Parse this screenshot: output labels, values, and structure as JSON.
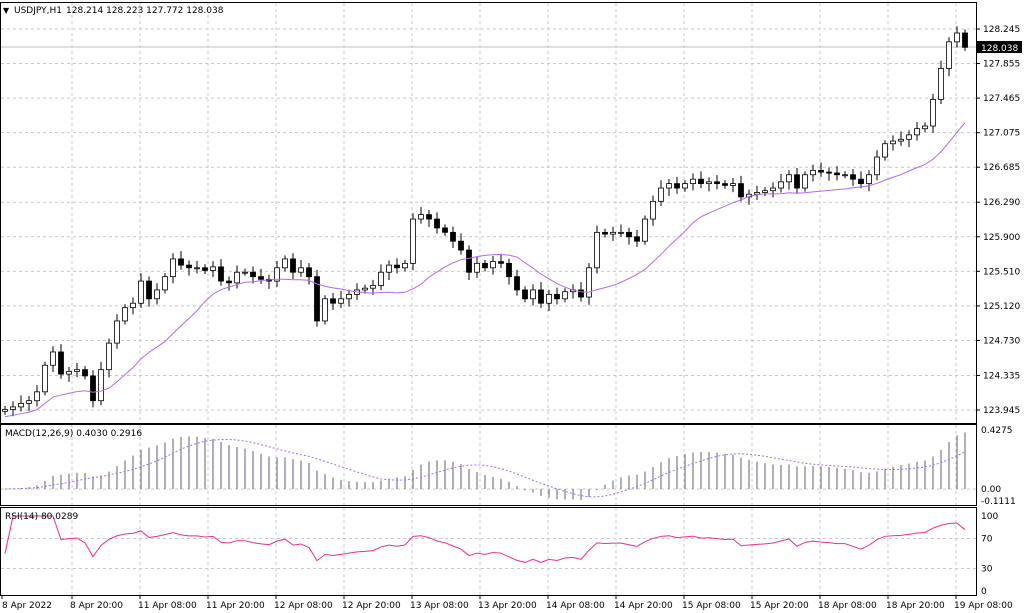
{
  "header": {
    "symbol": "USDJPY,H1",
    "ohlc": "128.214 128.223 127.772 128.038",
    "arrow_icon": "triangle-down-icon"
  },
  "macd": {
    "label": "MACD(12,26,9) 0.4030 0.2916",
    "axis": [
      "0.4275",
      "0.00",
      "-0.1111"
    ],
    "range": [
      -0.1111,
      0.4275
    ]
  },
  "rsi": {
    "label": "RSI(14) 80.0289",
    "axis": [
      "100",
      "70",
      "30",
      "0"
    ],
    "levels": [
      100,
      70,
      30,
      0
    ]
  },
  "colors": {
    "bull": "#ffffff",
    "bear": "#000000",
    "ma": "#b469f0",
    "macd_hist": "#7a7a8c",
    "macd_signal": "#a070f0",
    "rsi": "#e6348c",
    "grid": "#c8c8c8",
    "price_tag": "#000000"
  },
  "chart_data": {
    "type": "candlestick",
    "price_axis": [
      "128.245",
      "127.855",
      "127.465",
      "127.075",
      "126.685",
      "126.290",
      "125.900",
      "125.510",
      "125.120",
      "124.730",
      "124.335",
      "123.945"
    ],
    "ylim": [
      123.945,
      128.245
    ],
    "current_price": "128.038",
    "time_axis": [
      "8 Apr 2022",
      "8 Apr 20:00",
      "11 Apr 08:00",
      "11 Apr 20:00",
      "12 Apr 08:00",
      "12 Apr 20:00",
      "13 Apr 08:00",
      "13 Apr 20:00",
      "14 Apr 08:00",
      "14 Apr 20:00",
      "15 Apr 08:00",
      "15 Apr 20:00",
      "18 Apr 08:00",
      "18 Apr 20:00",
      "19 Apr 08:00"
    ],
    "grid": true,
    "closes": [
      123.95,
      123.98,
      124.02,
      124.05,
      124.15,
      124.45,
      124.6,
      124.35,
      124.38,
      124.4,
      124.33,
      124.05,
      124.4,
      124.7,
      124.95,
      125.1,
      125.15,
      125.4,
      125.2,
      125.3,
      125.45,
      125.65,
      125.58,
      125.55,
      125.55,
      125.52,
      125.56,
      125.4,
      125.38,
      125.5,
      125.5,
      125.45,
      125.42,
      125.4,
      125.55,
      125.65,
      125.5,
      125.55,
      125.45,
      124.95,
      125.2,
      125.15,
      125.2,
      125.25,
      125.3,
      125.32,
      125.35,
      125.5,
      125.58,
      125.55,
      125.6,
      126.1,
      126.15,
      126.1,
      126.0,
      125.95,
      125.85,
      125.75,
      125.5,
      125.6,
      125.55,
      125.62,
      125.6,
      125.45,
      125.3,
      125.2,
      125.3,
      125.15,
      125.25,
      125.2,
      125.28,
      125.3,
      125.22,
      125.55,
      125.95,
      125.93,
      125.95,
      125.95,
      125.9,
      125.85,
      126.1,
      126.3,
      126.45,
      126.5,
      126.45,
      126.5,
      126.55,
      126.5,
      126.52,
      126.5,
      126.48,
      126.5,
      126.35,
      126.38,
      126.4,
      126.42,
      126.45,
      126.52,
      126.6,
      126.45,
      126.6,
      126.65,
      126.63,
      126.62,
      126.6,
      126.6,
      126.55,
      126.5,
      126.6,
      126.8,
      126.95,
      126.98,
      127.0,
      127.05,
      127.12,
      127.15,
      127.45,
      127.8,
      128.1,
      128.2,
      128.038
    ]
  }
}
